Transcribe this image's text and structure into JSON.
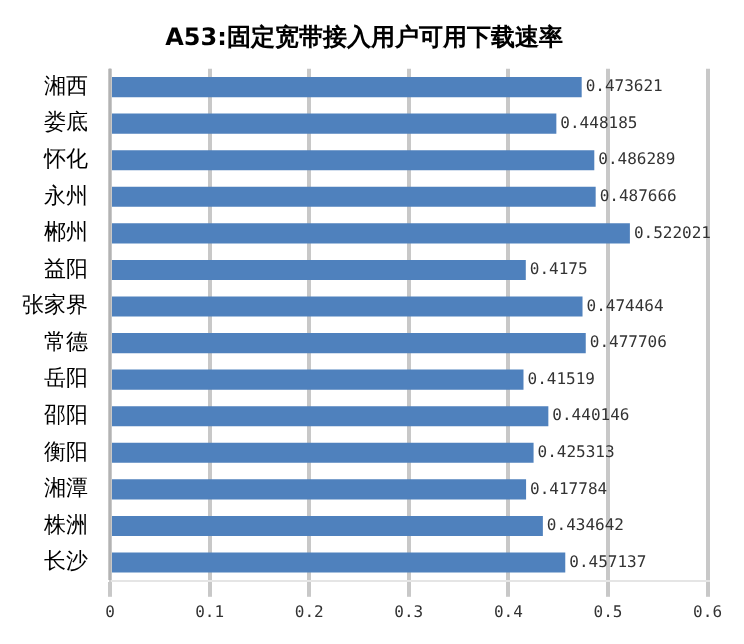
{
  "chart_data": {
    "type": "bar",
    "orientation": "horizontal",
    "title": "A53:固定宽带接入用户可用下载速率",
    "categories": [
      "湘西",
      "娄底",
      "怀化",
      "永州",
      "郴州",
      "益阳",
      "张家界",
      "常德",
      "岳阳",
      "邵阳",
      "衡阳",
      "湘潭",
      "株洲",
      "长沙"
    ],
    "values": [
      0.473621,
      0.448185,
      0.486289,
      0.487666,
      0.522021,
      0.4175,
      0.474464,
      0.477706,
      0.41519,
      0.440146,
      0.425313,
      0.417784,
      0.434642,
      0.457137
    ],
    "color": "#4f81bd",
    "xlim": [
      0,
      0.6
    ],
    "xticks": [
      0,
      0.1,
      0.2,
      0.3,
      0.4,
      0.5,
      0.6
    ],
    "grid": "x",
    "data_labels": true,
    "legend": false
  }
}
